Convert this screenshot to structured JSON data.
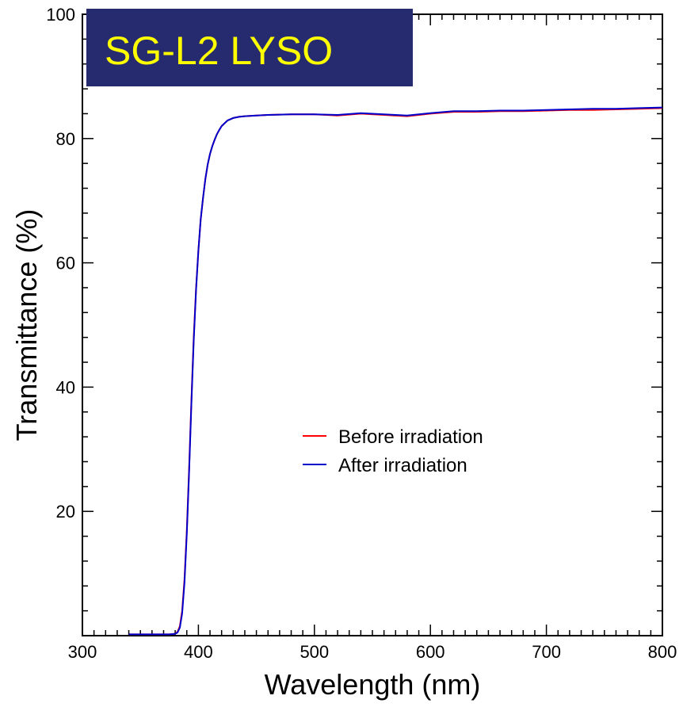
{
  "chart_data": {
    "type": "line",
    "title": "SG-L2 LYSO",
    "title_style": {
      "background": "#262a6e",
      "color": "#ffff00"
    },
    "xlabel": "Wavelength (nm)",
    "ylabel": "Transmittance (%)",
    "xlim": [
      300,
      800
    ],
    "ylim": [
      0,
      100
    ],
    "xticks": [
      300,
      400,
      500,
      600,
      700,
      800
    ],
    "yticks": [
      20,
      40,
      60,
      80,
      100
    ],
    "grid": false,
    "legend": {
      "placement": "center-right"
    },
    "series": [
      {
        "name": "Before irradiation",
        "color": "#ff0000",
        "x": [
          340,
          360,
          375,
          380,
          382,
          384,
          386,
          388,
          390,
          392,
          394,
          396,
          398,
          400,
          402,
          404,
          406,
          408,
          410,
          412,
          414,
          416,
          418,
          420,
          425,
          430,
          435,
          440,
          450,
          460,
          480,
          500,
          520,
          540,
          560,
          580,
          600,
          620,
          640,
          660,
          680,
          700,
          720,
          740,
          760,
          780,
          800
        ],
        "y": [
          0.2,
          0.2,
          0.2,
          0.3,
          0.6,
          1.5,
          4,
          9,
          17,
          27,
          38,
          48,
          56,
          62,
          67,
          70.5,
          73.5,
          75.8,
          77.5,
          78.8,
          79.8,
          80.7,
          81.4,
          82,
          82.9,
          83.3,
          83.5,
          83.6,
          83.7,
          83.8,
          83.9,
          83.9,
          83.7,
          84.0,
          83.8,
          83.6,
          84.0,
          84.3,
          84.3,
          84.4,
          84.4,
          84.5,
          84.6,
          84.6,
          84.7,
          84.8,
          84.9
        ]
      },
      {
        "name": "After irradiation",
        "color": "#0000cc",
        "x": [
          340,
          360,
          375,
          380,
          382,
          384,
          386,
          388,
          390,
          392,
          394,
          396,
          398,
          400,
          402,
          404,
          406,
          408,
          410,
          412,
          414,
          416,
          418,
          420,
          425,
          430,
          435,
          440,
          450,
          460,
          480,
          500,
          520,
          540,
          560,
          580,
          600,
          620,
          640,
          660,
          680,
          700,
          720,
          740,
          760,
          780,
          800
        ],
        "y": [
          0.2,
          0.2,
          0.2,
          0.3,
          0.5,
          1.3,
          3.6,
          8.5,
          16.5,
          26.5,
          37.5,
          47.5,
          55.8,
          62,
          67,
          70.5,
          73.5,
          75.8,
          77.5,
          78.8,
          79.8,
          80.7,
          81.4,
          82,
          82.9,
          83.3,
          83.5,
          83.6,
          83.7,
          83.8,
          83.9,
          83.9,
          83.8,
          84.1,
          83.9,
          83.7,
          84.1,
          84.4,
          84.4,
          84.5,
          84.5,
          84.6,
          84.7,
          84.8,
          84.8,
          84.9,
          85.0
        ]
      }
    ]
  }
}
